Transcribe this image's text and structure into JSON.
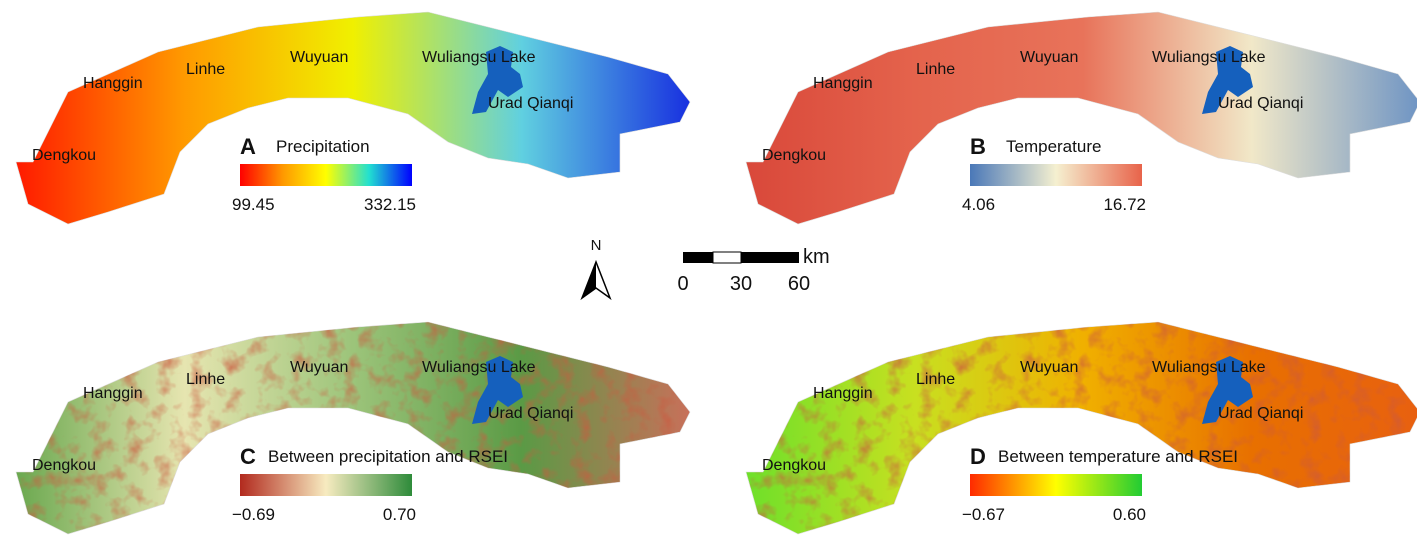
{
  "panels": [
    {
      "letter": "A",
      "title": "Precipitation",
      "legend_min": "99.45",
      "legend_max": "332.15",
      "legend_colors": [
        "#ff0000",
        "#ff9900",
        "#ffff00",
        "#22e0d0",
        "#0000ff"
      ],
      "map_colors": [
        "#ff1a00",
        "#ff9a00",
        "#f0f000",
        "#60d0e0",
        "#1830e0"
      ],
      "places": [
        "Hanggin",
        "Linhe",
        "Wuyuan",
        "Wuliangsu Lake",
        "Urad Qianqi",
        "Dengkou"
      ]
    },
    {
      "letter": "B",
      "title": "Temperature",
      "legend_min": "4.06",
      "legend_max": "16.72",
      "legend_colors": [
        "#4a78b8",
        "#f5f0d0",
        "#e8634a"
      ],
      "map_colors": [
        "#d9483a",
        "#e4634c",
        "#e8735a",
        "#f1e8c8",
        "#6e94c4"
      ],
      "places": [
        "Hanggin",
        "Linhe",
        "Wuyuan",
        "Wuliangsu Lake",
        "Urad Qianqi",
        "Dengkou"
      ]
    },
    {
      "letter": "C",
      "title": "Between precipitation and RSEI",
      "legend_min": "−0.69",
      "legend_max": "0.70",
      "legend_colors": [
        "#b22a1e",
        "#f7ebc0",
        "#2e8b3a"
      ],
      "map_colors": [
        "#6aa84f",
        "#e6e5b0",
        "#9cc47a",
        "#5a9a45",
        "#c8705a"
      ],
      "places": [
        "Hanggin",
        "Linhe",
        "Wuyuan",
        "Wuliangsu Lake",
        "Urad Qianqi",
        "Dengkou"
      ]
    },
    {
      "letter": "D",
      "title": "Between temperature and RSEI",
      "legend_min": "−0.67",
      "legend_max": "0.60",
      "legend_colors": [
        "#ff2a00",
        "#ffff00",
        "#22cc33"
      ],
      "map_colors": [
        "#6ee02a",
        "#c8e020",
        "#f0b000",
        "#e87000",
        "#e86010"
      ],
      "places": [
        "Hanggin",
        "Linhe",
        "Wuyuan",
        "Wuliangsu Lake",
        "Urad Qianqi",
        "Dengkou"
      ]
    }
  ],
  "north": "N",
  "scale_bar": {
    "unit": "km",
    "labels": [
      "0",
      "30",
      "60"
    ]
  }
}
